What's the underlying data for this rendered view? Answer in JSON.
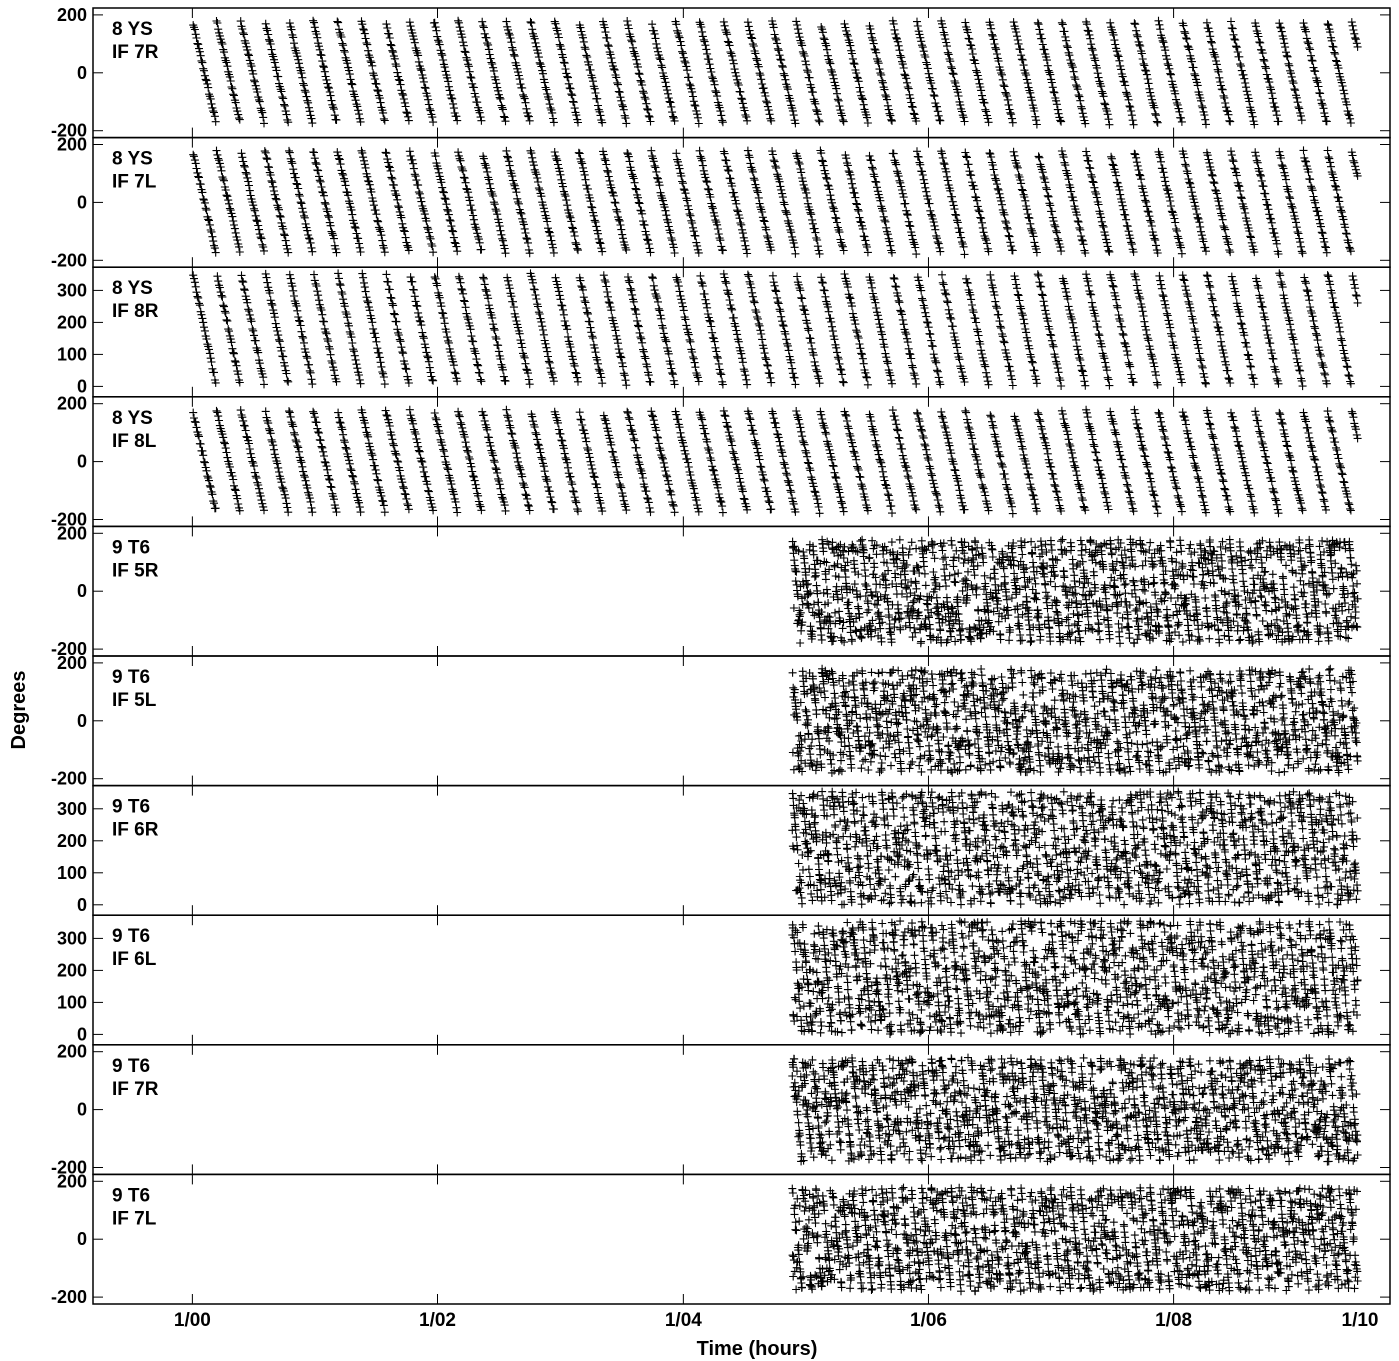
{
  "chart_data": {
    "type": "scatter",
    "title": "",
    "xlabel": "Time (hours)",
    "ylabel": "Degrees",
    "xlim": [
      -0.0135,
      0.1627
    ],
    "x_ticks": [
      {
        "value": 0.0,
        "label": "1/00"
      },
      {
        "value": 0.0333,
        "label": "1/02"
      },
      {
        "value": 0.0667,
        "label": "1/04"
      },
      {
        "value": 0.1,
        "label": "1/06"
      },
      {
        "value": 0.1333,
        "label": "1/08"
      },
      {
        "value": 0.1667,
        "label": "1/10"
      }
    ],
    "panels": [
      {
        "label_line1": "8 YS",
        "label_line2": "IF 7R",
        "ylim": [
          -210,
          210
        ],
        "yticks": [
          -200,
          0,
          200
        ],
        "x_start": 0.0,
        "x_end": 0.1583,
        "wrap_step": 0.00328,
        "period": 360,
        "offset": -180
      },
      {
        "label_line1": "8 YS",
        "label_line2": "IF 7L",
        "ylim": [
          -210,
          210
        ],
        "yticks": [
          -200,
          0,
          200
        ],
        "x_start": 0.0,
        "x_end": 0.1583,
        "wrap_step": 0.00328,
        "period": 360,
        "offset": -180
      },
      {
        "label_line1": "8 YS",
        "label_line2": "IF 8R",
        "ylim": [
          -20,
          360
        ],
        "yticks": [
          0,
          100,
          200,
          300
        ],
        "x_start": 0.0,
        "x_end": 0.1583,
        "wrap_step": 0.00328,
        "period": 360,
        "offset": 0
      },
      {
        "label_line1": "8 YS",
        "label_line2": "IF 8L",
        "ylim": [
          -210,
          210
        ],
        "yticks": [
          -200,
          0,
          200
        ],
        "x_start": 0.0,
        "x_end": 0.1583,
        "wrap_step": 0.00328,
        "period": 360,
        "offset": -180
      },
      {
        "label_line1": "9 T6",
        "label_line2": "IF 5R",
        "ylim": [
          -210,
          210
        ],
        "yticks": [
          -200,
          0,
          200
        ],
        "x_start": 0.0815,
        "x_end": 0.1583,
        "wrap_step": 0.00135,
        "period": 360,
        "offset": -180
      },
      {
        "label_line1": "9 T6",
        "label_line2": "IF 5L",
        "ylim": [
          -210,
          210
        ],
        "yticks": [
          -200,
          0,
          200
        ],
        "x_start": 0.0815,
        "x_end": 0.1583,
        "wrap_step": 0.00135,
        "period": 360,
        "offset": -180
      },
      {
        "label_line1": "9 T6",
        "label_line2": "IF 6R",
        "ylim": [
          -20,
          360
        ],
        "yticks": [
          0,
          100,
          200,
          300
        ],
        "x_start": 0.0815,
        "x_end": 0.1583,
        "wrap_step": 0.00135,
        "period": 360,
        "offset": 0
      },
      {
        "label_line1": "9 T6",
        "label_line2": "IF 6L",
        "ylim": [
          -20,
          360
        ],
        "yticks": [
          0,
          100,
          200,
          300
        ],
        "x_start": 0.0815,
        "x_end": 0.1583,
        "wrap_step": 0.00135,
        "period": 360,
        "offset": 0
      },
      {
        "label_line1": "9 T6",
        "label_line2": "IF 7R",
        "ylim": [
          -210,
          210
        ],
        "yticks": [
          -200,
          0,
          200
        ],
        "x_start": 0.0815,
        "x_end": 0.1583,
        "wrap_step": 0.00135,
        "period": 360,
        "offset": -180
      },
      {
        "label_line1": "9 T6",
        "label_line2": "IF 7L",
        "ylim": [
          -210,
          210
        ],
        "yticks": [
          -200,
          0,
          200
        ],
        "x_start": 0.0815,
        "x_end": 0.1583,
        "wrap_step": 0.00135,
        "period": 360,
        "offset": -180
      }
    ]
  }
}
